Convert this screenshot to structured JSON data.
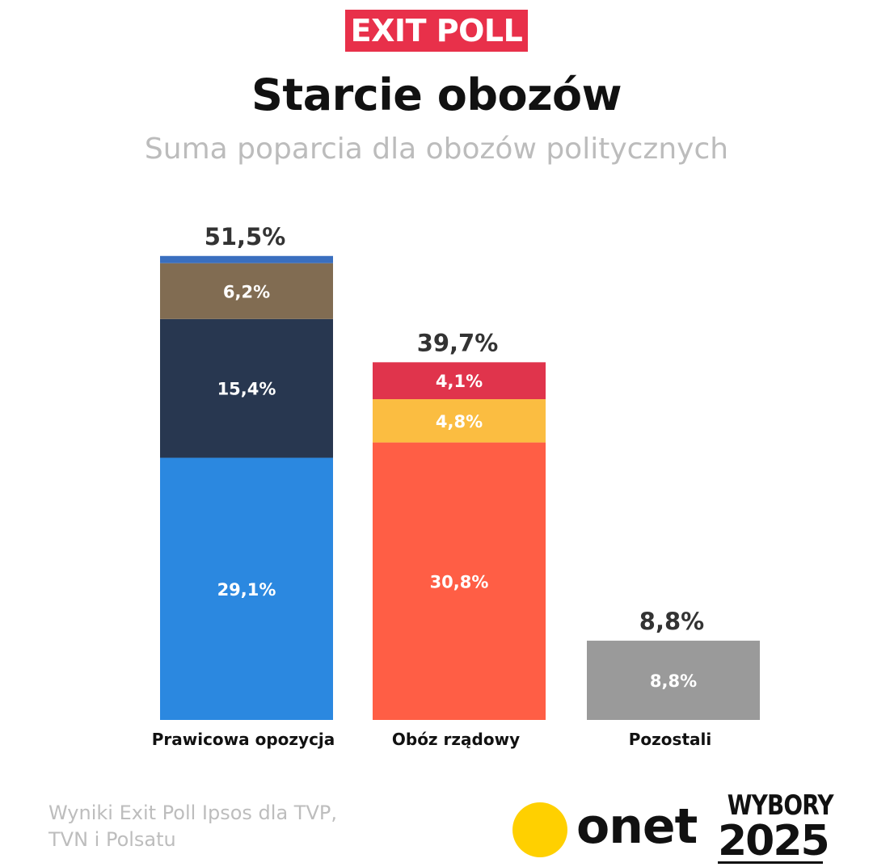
{
  "badge": "EXIT POLL",
  "title": "Starcie obozów",
  "subtitle": "Suma poparcia dla obozów politycznych",
  "footer": {
    "source_line1": "Wyniki Exit Poll Ipsos dla TVP,",
    "source_line2": "TVN i Polsatu",
    "onet_logo": "onet",
    "wybory_line1": "WYBORY",
    "wybory_line2": "2025"
  },
  "chart_data": {
    "type": "bar",
    "stacked": true,
    "unit": "%",
    "categories": [
      "Prawicowa opozycja",
      "Obóz rządowy",
      "Pozostali"
    ],
    "totals": [
      51.5,
      39.7,
      8.8
    ],
    "total_labels": [
      "51,5%",
      "39,7%",
      "8,8%"
    ],
    "stacks": [
      {
        "category": "Prawicowa opozycja",
        "segments": [
          {
            "value": 29.1,
            "label": "29,1%",
            "color": "#2b88e0"
          },
          {
            "value": 15.4,
            "label": "15,4%",
            "color": "#283750"
          },
          {
            "value": 6.2,
            "label": "6,2%",
            "color": "#816c52"
          },
          {
            "value": 0.8,
            "label": "",
            "color": "#3a6fbf"
          }
        ]
      },
      {
        "category": "Obóz rządowy",
        "segments": [
          {
            "value": 30.8,
            "label": "30,8%",
            "color": "#ff5e45"
          },
          {
            "value": 4.8,
            "label": "4,8%",
            "color": "#fbbd41"
          },
          {
            "value": 4.1,
            "label": "4,1%",
            "color": "#e0344c"
          }
        ]
      },
      {
        "category": "Pozostali",
        "segments": [
          {
            "value": 8.8,
            "label": "8,8%",
            "color": "#9a9a9a"
          }
        ]
      }
    ],
    "legend": "none",
    "grid": false
  }
}
